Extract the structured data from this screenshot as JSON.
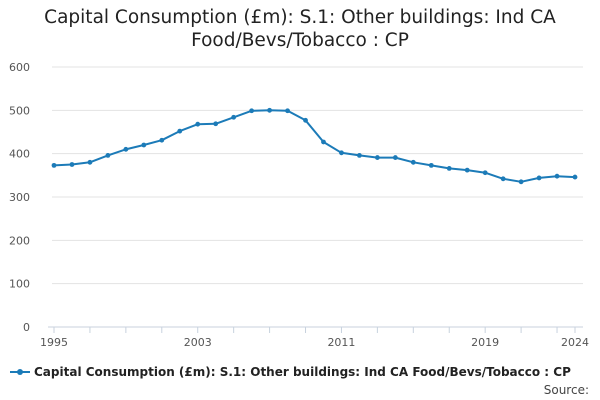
{
  "chart_data": {
    "type": "line",
    "title_lines": [
      "Capital Consumption (£m): S.1: Other buildings: Ind CA",
      "Food/Bevs/Tobacco : CP"
    ],
    "xlabel": "",
    "ylabel": "",
    "x": [
      1995,
      1996,
      1997,
      1998,
      1999,
      2000,
      2001,
      2002,
      2003,
      2004,
      2005,
      2006,
      2007,
      2008,
      2009,
      2010,
      2011,
      2012,
      2013,
      2014,
      2015,
      2016,
      2017,
      2018,
      2019,
      2020,
      2021,
      2022,
      2023,
      2024
    ],
    "xlim": [
      1995,
      2024
    ],
    "x_tick_labels": [
      "1995",
      "2003",
      "2011",
      "2019",
      "2024"
    ],
    "ylim": [
      0,
      600
    ],
    "y_tick_labels": [
      "0",
      "100",
      "200",
      "300",
      "400",
      "500",
      "600"
    ],
    "series": [
      {
        "name": "Capital Consumption (£m): S.1: Other buildings: Ind CA Food/Bevs/Tobacco : CP",
        "color": "#1c7bb8",
        "values": [
          373,
          375,
          380,
          396,
          410,
          420,
          431,
          452,
          468,
          469,
          484,
          499,
          500,
          499,
          477,
          427,
          402,
          396,
          391,
          391,
          380,
          373,
          366,
          362,
          356,
          342,
          335,
          344,
          348,
          346
        ]
      }
    ],
    "grid": true,
    "legend_position": "bottom-left",
    "source_label": "Source:"
  }
}
